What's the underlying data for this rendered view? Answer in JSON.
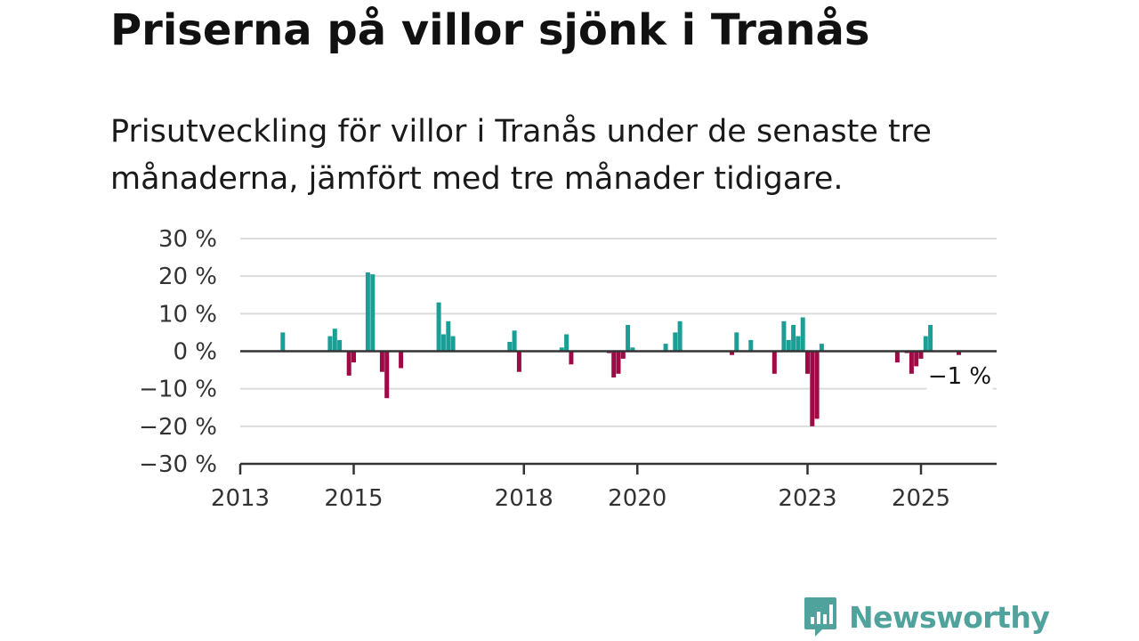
{
  "title": "Priserna på villor sjönk i Tranås",
  "subtitle": "Prisutveckling för villor i Tranås under de senaste tre månaderna, jämfört med tre månader tidigare.",
  "logo": {
    "text": "Newsworthy",
    "icon": "newsworthy-chart-bubble-icon"
  },
  "colors": {
    "positive": "#1a9e96",
    "negative": "#9e0a45",
    "grid": "#dcdcdc",
    "axis": "#333333",
    "brand": "#4fa39c"
  },
  "chart_data": {
    "type": "bar",
    "ylim": [
      -30,
      30
    ],
    "xlim": [
      "2013-01",
      "2026-05"
    ],
    "yticks": [
      {
        "value": 30,
        "label": "30 %"
      },
      {
        "value": 20,
        "label": "20 %"
      },
      {
        "value": 10,
        "label": "10 %"
      },
      {
        "value": 0,
        "label": "0 %"
      },
      {
        "value": -10,
        "label": "−10 %"
      },
      {
        "value": -20,
        "label": "−20 %"
      },
      {
        "value": -30,
        "label": "−30 %"
      }
    ],
    "xticks": [
      {
        "date": "2013-01",
        "label": "2013"
      },
      {
        "date": "2015-01",
        "label": "2015"
      },
      {
        "date": "2018-01",
        "label": "2018"
      },
      {
        "date": "2020-01",
        "label": "2020"
      },
      {
        "date": "2023-01",
        "label": "2023"
      },
      {
        "date": "2025-01",
        "label": "2025"
      }
    ],
    "grid": true,
    "annotation": {
      "label": "−1 %",
      "date": "2025-09",
      "value": -1
    },
    "points": [
      {
        "date": "2013-10",
        "value": 5
      },
      {
        "date": "2014-08",
        "value": 4
      },
      {
        "date": "2014-09",
        "value": 6
      },
      {
        "date": "2014-10",
        "value": 3
      },
      {
        "date": "2014-12",
        "value": -6.5
      },
      {
        "date": "2015-01",
        "value": -3
      },
      {
        "date": "2015-04",
        "value": 21
      },
      {
        "date": "2015-05",
        "value": 20.5
      },
      {
        "date": "2015-07",
        "value": -5.5
      },
      {
        "date": "2015-08",
        "value": -12.5
      },
      {
        "date": "2015-11",
        "value": -4.5
      },
      {
        "date": "2016-07",
        "value": 13
      },
      {
        "date": "2016-08",
        "value": 4.5
      },
      {
        "date": "2016-09",
        "value": 8
      },
      {
        "date": "2016-10",
        "value": 4
      },
      {
        "date": "2017-10",
        "value": 2.5
      },
      {
        "date": "2017-11",
        "value": 5.5
      },
      {
        "date": "2017-12",
        "value": -5.5
      },
      {
        "date": "2018-09",
        "value": 1
      },
      {
        "date": "2018-10",
        "value": 4.5
      },
      {
        "date": "2018-11",
        "value": -3.5
      },
      {
        "date": "2019-07",
        "value": -0.5
      },
      {
        "date": "2019-08",
        "value": -7
      },
      {
        "date": "2019-09",
        "value": -6
      },
      {
        "date": "2019-10",
        "value": -2
      },
      {
        "date": "2019-11",
        "value": 7
      },
      {
        "date": "2019-12",
        "value": 1
      },
      {
        "date": "2020-07",
        "value": 2
      },
      {
        "date": "2020-09",
        "value": 5
      },
      {
        "date": "2020-10",
        "value": 8
      },
      {
        "date": "2021-09",
        "value": -1
      },
      {
        "date": "2021-10",
        "value": 5
      },
      {
        "date": "2022-01",
        "value": 3
      },
      {
        "date": "2022-06",
        "value": -6
      },
      {
        "date": "2022-08",
        "value": 8
      },
      {
        "date": "2022-09",
        "value": 3
      },
      {
        "date": "2022-10",
        "value": 7
      },
      {
        "date": "2022-11",
        "value": 4
      },
      {
        "date": "2022-12",
        "value": 9
      },
      {
        "date": "2023-01",
        "value": -6
      },
      {
        "date": "2023-02",
        "value": -20
      },
      {
        "date": "2023-03",
        "value": -18
      },
      {
        "date": "2023-04",
        "value": 2
      },
      {
        "date": "2024-08",
        "value": -3
      },
      {
        "date": "2024-10",
        "value": -0.5
      },
      {
        "date": "2024-11",
        "value": -6
      },
      {
        "date": "2024-12",
        "value": -4
      },
      {
        "date": "2025-01",
        "value": -2
      },
      {
        "date": "2025-02",
        "value": 4
      },
      {
        "date": "2025-03",
        "value": 7
      },
      {
        "date": "2025-09",
        "value": -1
      }
    ]
  }
}
